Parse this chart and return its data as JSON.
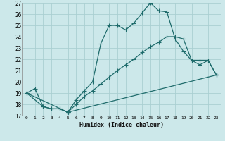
{
  "xlabel": "Humidex (Indice chaleur)",
  "bg_color": "#cce8ea",
  "grid_color": "#aacfd2",
  "line_color": "#1e6b6b",
  "xlim": [
    -0.5,
    23.5
  ],
  "ylim": [
    17,
    27
  ],
  "yticks": [
    17,
    18,
    19,
    20,
    21,
    22,
    23,
    24,
    25,
    26,
    27
  ],
  "xticks": [
    0,
    1,
    2,
    3,
    4,
    5,
    6,
    7,
    8,
    9,
    10,
    11,
    12,
    13,
    14,
    15,
    16,
    17,
    18,
    19,
    20,
    21,
    22,
    23
  ],
  "series1": [
    [
      0,
      19.0
    ],
    [
      1,
      19.4
    ],
    [
      2,
      17.8
    ],
    [
      3,
      17.6
    ],
    [
      4,
      17.6
    ],
    [
      5,
      17.3
    ],
    [
      6,
      18.4
    ],
    [
      7,
      19.2
    ],
    [
      8,
      20.0
    ],
    [
      9,
      23.4
    ],
    [
      10,
      25.0
    ],
    [
      11,
      25.0
    ],
    [
      12,
      24.6
    ],
    [
      13,
      25.2
    ],
    [
      14,
      26.1
    ],
    [
      15,
      27.0
    ],
    [
      16,
      26.3
    ],
    [
      17,
      26.2
    ],
    [
      18,
      23.8
    ],
    [
      19,
      22.7
    ],
    [
      20,
      21.9
    ],
    [
      21,
      21.9
    ],
    [
      22,
      21.9
    ],
    [
      23,
      20.6
    ]
  ],
  "series2": [
    [
      0,
      19.0
    ],
    [
      2,
      17.8
    ],
    [
      3,
      17.6
    ],
    [
      4,
      17.6
    ],
    [
      5,
      17.3
    ],
    [
      6,
      18.0
    ],
    [
      7,
      18.7
    ],
    [
      8,
      19.2
    ],
    [
      9,
      19.8
    ],
    [
      10,
      20.4
    ],
    [
      11,
      21.0
    ],
    [
      12,
      21.5
    ],
    [
      13,
      22.0
    ],
    [
      14,
      22.6
    ],
    [
      15,
      23.1
    ],
    [
      16,
      23.5
    ],
    [
      17,
      24.0
    ],
    [
      18,
      24.0
    ],
    [
      19,
      23.8
    ],
    [
      20,
      21.9
    ],
    [
      21,
      21.5
    ],
    [
      22,
      21.9
    ],
    [
      23,
      20.6
    ]
  ],
  "series3": [
    [
      0,
      19.0
    ],
    [
      5,
      17.3
    ],
    [
      23,
      20.6
    ]
  ]
}
